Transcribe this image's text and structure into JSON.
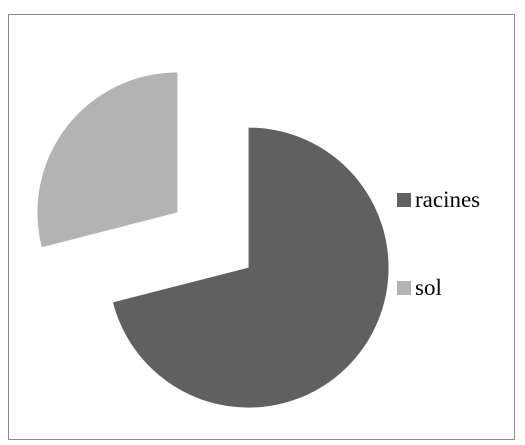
{
  "chart_data": {
    "type": "pie",
    "title": "",
    "categories": [
      "racines",
      "sol"
    ],
    "values": [
      71,
      29
    ],
    "colors": [
      "#606060",
      "#b3b3b3"
    ],
    "exploded": true,
    "legend_position": "right"
  }
}
